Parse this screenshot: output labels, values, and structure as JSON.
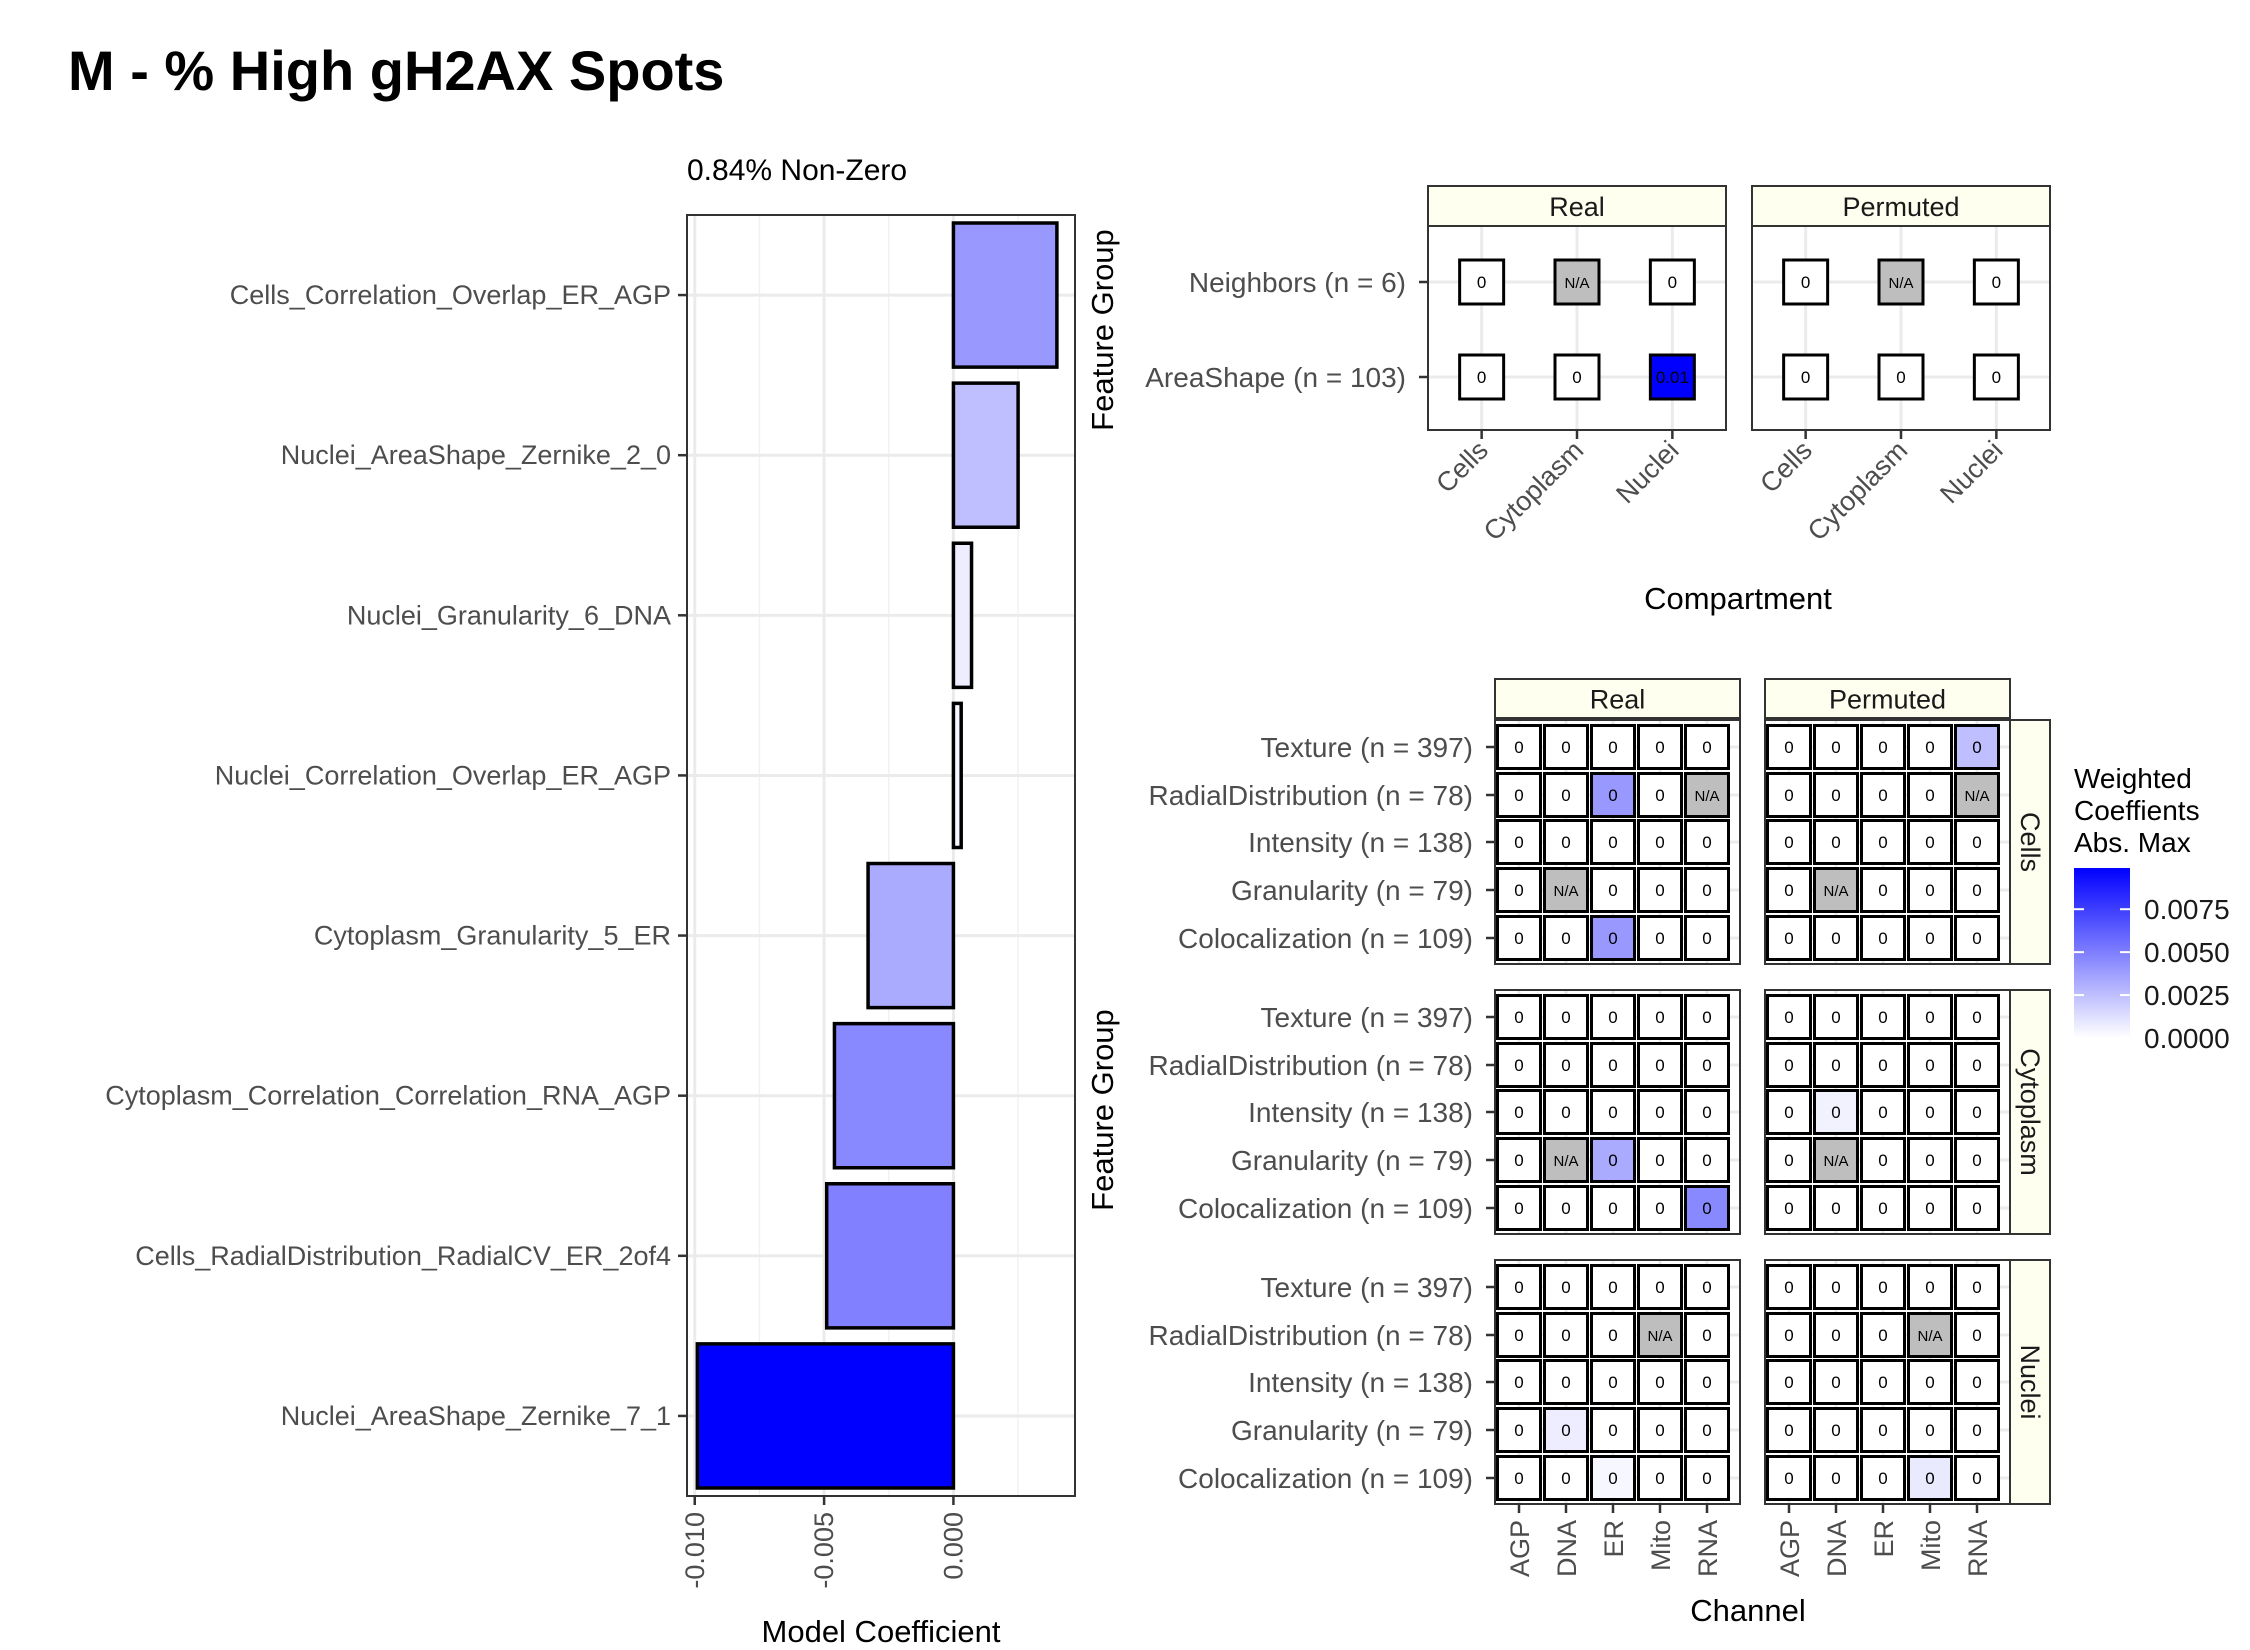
{
  "page_title": "M - % High gH2AX Spots",
  "colors": {
    "low": "#ffffff",
    "high": "#0000ff",
    "na": "#bebebe",
    "strip": "#fffff0",
    "grid": "#ebebeb"
  },
  "chart_data": [
    {
      "type": "bar",
      "orientation": "horizontal",
      "subtitle": "0.84% Non-Zero",
      "xlabel": "Model Coefficient",
      "ylabel": "",
      "xlim": [
        -0.0103,
        0.0047
      ],
      "x_ticks": [
        -0.01,
        -0.005,
        0.0
      ],
      "x_tick_labels": [
        "-0.010",
        "-0.005",
        "0.000"
      ],
      "grid": true,
      "categories": [
        "Cells_Correlation_Overlap_ER_AGP",
        "Nuclei_AreaShape_Zernike_2_0",
        "Nuclei_Granularity_6_DNA",
        "Nuclei_Correlation_Overlap_ER_AGP",
        "Cytoplasm_Granularity_5_ER",
        "Cytoplasm_Correlation_Correlation_RNA_AGP",
        "Cells_RadialDistribution_RadialCV_ER_2of4",
        "Nuclei_AreaShape_Zernike_7_1"
      ],
      "values": [
        0.004,
        0.0025,
        0.0007,
        0.0003,
        -0.0033,
        -0.0046,
        -0.0049,
        -0.0099
      ],
      "fill_scale_max": 0.0099
    },
    {
      "type": "heatmap",
      "x_axis_label": "Compartment",
      "y_axis_label": "Feature Group",
      "facets": [
        "Real",
        "Permuted"
      ],
      "columns": [
        "Cells",
        "Cytoplasm",
        "Nuclei"
      ],
      "rows": [
        "Neighbors (n = 6)",
        "AreaShape (n = 103)"
      ],
      "cells": {
        "Real": [
          [
            "0",
            "N/A",
            "0"
          ],
          [
            "0",
            "0",
            "0.01"
          ]
        ],
        "Permuted": [
          [
            "0",
            "N/A",
            "0"
          ],
          [
            "0",
            "0",
            "0"
          ]
        ]
      },
      "fill": {
        "Real": [
          [
            0,
            null,
            0
          ],
          [
            0,
            0,
            0.0099
          ]
        ],
        "Permuted": [
          [
            0,
            null,
            0
          ],
          [
            0,
            0,
            0
          ]
        ]
      }
    },
    {
      "type": "heatmap",
      "x_axis_label": "Channel",
      "y_axis_label": "Feature Group",
      "facets": [
        "Real",
        "Permuted"
      ],
      "row_facets": [
        "Cells",
        "Cytoplasm",
        "Nuclei"
      ],
      "columns": [
        "AGP",
        "DNA",
        "ER",
        "Mito",
        "RNA"
      ],
      "rows": [
        "Texture (n = 397)",
        "RadialDistribution (n = 78)",
        "Intensity (n = 138)",
        "Granularity (n = 79)",
        "Colocalization (n = 109)"
      ],
      "cells": {
        "Cells": {
          "Real": [
            [
              "0",
              "0",
              "0",
              "0",
              "0"
            ],
            [
              "0",
              "0",
              "0",
              "0",
              "N/A"
            ],
            [
              "0",
              "0",
              "0",
              "0",
              "0"
            ],
            [
              "0",
              "N/A",
              "0",
              "0",
              "0"
            ],
            [
              "0",
              "0",
              "0",
              "0",
              "0"
            ]
          ],
          "Permuted": [
            [
              "0",
              "0",
              "0",
              "0",
              "0"
            ],
            [
              "0",
              "0",
              "0",
              "0",
              "N/A"
            ],
            [
              "0",
              "0",
              "0",
              "0",
              "0"
            ],
            [
              "0",
              "N/A",
              "0",
              "0",
              "0"
            ],
            [
              "0",
              "0",
              "0",
              "0",
              "0"
            ]
          ]
        },
        "Cytoplasm": {
          "Real": [
            [
              "0",
              "0",
              "0",
              "0",
              "0"
            ],
            [
              "0",
              "0",
              "0",
              "0",
              "0"
            ],
            [
              "0",
              "0",
              "0",
              "0",
              "0"
            ],
            [
              "0",
              "N/A",
              "0",
              "0",
              "0"
            ],
            [
              "0",
              "0",
              "0",
              "0",
              "0"
            ]
          ],
          "Permuted": [
            [
              "0",
              "0",
              "0",
              "0",
              "0"
            ],
            [
              "0",
              "0",
              "0",
              "0",
              "0"
            ],
            [
              "0",
              "0",
              "0",
              "0",
              "0"
            ],
            [
              "0",
              "N/A",
              "0",
              "0",
              "0"
            ],
            [
              "0",
              "0",
              "0",
              "0",
              "0"
            ]
          ]
        },
        "Nuclei": {
          "Real": [
            [
              "0",
              "0",
              "0",
              "0",
              "0"
            ],
            [
              "0",
              "0",
              "0",
              "N/A",
              "0"
            ],
            [
              "0",
              "0",
              "0",
              "0",
              "0"
            ],
            [
              "0",
              "0",
              "0",
              "0",
              "0"
            ],
            [
              "0",
              "0",
              "0",
              "0",
              "0"
            ]
          ],
          "Permuted": [
            [
              "0",
              "0",
              "0",
              "0",
              "0"
            ],
            [
              "0",
              "0",
              "0",
              "N/A",
              "0"
            ],
            [
              "0",
              "0",
              "0",
              "0",
              "0"
            ],
            [
              "0",
              "0",
              "0",
              "0",
              "0"
            ],
            [
              "0",
              "0",
              "0",
              "0",
              "0"
            ]
          ]
        }
      },
      "fill": {
        "Cells": {
          "Real": [
            [
              0,
              0,
              0,
              0,
              0
            ],
            [
              0,
              0,
              0.004,
              0,
              null
            ],
            [
              0,
              0,
              0,
              0,
              0
            ],
            [
              0,
              null,
              0,
              0,
              0
            ],
            [
              0,
              0,
              0.004,
              0,
              0
            ]
          ],
          "Permuted": [
            [
              0,
              0,
              0,
              0,
              0.0025
            ],
            [
              0,
              0,
              0,
              0,
              null
            ],
            [
              0,
              0,
              0,
              0,
              0
            ],
            [
              0,
              null,
              0,
              0,
              0
            ],
            [
              0,
              0,
              0,
              0,
              0
            ]
          ]
        },
        "Cytoplasm": {
          "Real": [
            [
              0,
              0,
              0,
              0,
              0
            ],
            [
              0,
              0,
              0,
              0,
              0
            ],
            [
              0,
              0,
              0,
              0,
              0
            ],
            [
              0,
              null,
              0.0033,
              0,
              0
            ],
            [
              0,
              0,
              0,
              0,
              0.0046
            ]
          ],
          "Permuted": [
            [
              0,
              0,
              0,
              0,
              0
            ],
            [
              0,
              0,
              0,
              0,
              0
            ],
            [
              0,
              0.0005,
              0,
              0,
              0
            ],
            [
              0,
              null,
              0,
              0,
              0
            ],
            [
              0,
              0,
              0,
              0,
              0
            ]
          ]
        },
        "Nuclei": {
          "Real": [
            [
              0,
              0,
              0,
              0,
              0
            ],
            [
              0,
              0,
              0,
              null,
              0
            ],
            [
              0,
              0,
              0,
              0,
              0
            ],
            [
              0,
              0.0007,
              0,
              0,
              0
            ],
            [
              0,
              0,
              0.0003,
              0,
              0
            ]
          ],
          "Permuted": [
            [
              0,
              0,
              0,
              0,
              0
            ],
            [
              0,
              0,
              0,
              null,
              0
            ],
            [
              0,
              0,
              0,
              0,
              0
            ],
            [
              0,
              0,
              0,
              0,
              0
            ],
            [
              0,
              0,
              0,
              0.0008,
              0
            ]
          ]
        }
      }
    }
  ],
  "legend": {
    "title": [
      "Weighted",
      "Coeffients",
      "Abs. Max"
    ],
    "breaks": [
      "0.0075",
      "0.0050",
      "0.0025",
      "0.0000"
    ],
    "break_values": [
      0.0075,
      0.005,
      0.0025,
      0.0
    ],
    "max": 0.0099
  }
}
